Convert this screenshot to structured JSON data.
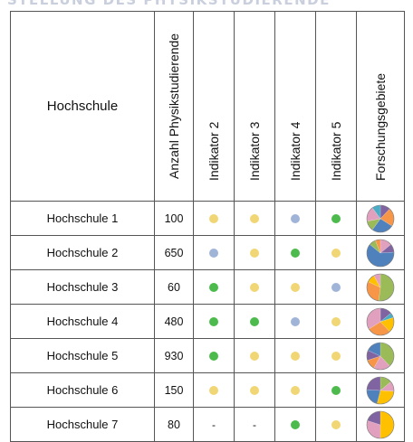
{
  "banner_text": "STELLUNG DES PHYSIKSTUDIERENDE",
  "colors": {
    "yellow": "#f0d674",
    "blue": "#a0b4d8",
    "green": "#4cba4c",
    "border": "#555555"
  },
  "headers": {
    "hochschule": "Hochschule",
    "anzahl": "Anzahl Physikstudierende",
    "indikator2": "Indikator 2",
    "indikator3": "Indikator 3",
    "indikator4": "Indikator 4",
    "indikator5": "Indikator 5",
    "forschungsgebiete": "Forschungsgebiete"
  },
  "rows": [
    {
      "name": "Hochschule 1",
      "anzahl": "100",
      "ind2": "yellow",
      "ind3": "yellow",
      "ind4": "blue",
      "ind5": "green",
      "pie": [
        [
          "#8064a2",
          0.12
        ],
        [
          "#f79646",
          0.22
        ],
        [
          "#4f81bd",
          0.26
        ],
        [
          "#9bbb59",
          0.12
        ],
        [
          "#e1a0bd",
          0.18
        ],
        [
          "#4bacc6",
          0.1
        ]
      ]
    },
    {
      "name": "Hochschule 2",
      "anzahl": "650",
      "ind2": "blue",
      "ind3": "yellow",
      "ind4": "green",
      "ind5": "yellow",
      "pie": [
        [
          "#e1a0bd",
          0.14
        ],
        [
          "#8064a2",
          0.1
        ],
        [
          "#4f81bd",
          0.62
        ],
        [
          "#9bbb59",
          0.08
        ],
        [
          "#f79646",
          0.06
        ]
      ]
    },
    {
      "name": "Hochschule 3",
      "anzahl": "60",
      "ind2": "green",
      "ind3": "yellow",
      "ind4": "yellow",
      "ind5": "blue",
      "pie": [
        [
          "#9bbb59",
          0.52
        ],
        [
          "#f79646",
          0.3
        ],
        [
          "#ffc000",
          0.1
        ],
        [
          "#e1a0bd",
          0.08
        ]
      ]
    },
    {
      "name": "Hochschule 4",
      "anzahl": "480",
      "ind2": "green",
      "ind3": "green",
      "ind4": "blue",
      "ind5": "yellow",
      "pie": [
        [
          "#8064a2",
          0.14
        ],
        [
          "#4bacc6",
          0.06
        ],
        [
          "#ffc000",
          0.18
        ],
        [
          "#f79646",
          0.28
        ],
        [
          "#e1a0bd",
          0.34
        ]
      ]
    },
    {
      "name": "Hochschule 5",
      "anzahl": "930",
      "ind2": "green",
      "ind3": "yellow",
      "ind4": "yellow",
      "ind5": "yellow",
      "pie": [
        [
          "#9bbb59",
          0.38
        ],
        [
          "#e1a0bd",
          0.2
        ],
        [
          "#f79646",
          0.12
        ],
        [
          "#8064a2",
          0.12
        ],
        [
          "#4f81bd",
          0.18
        ]
      ]
    },
    {
      "name": "Hochschule 6",
      "anzahl": "150",
      "ind2": "yellow",
      "ind3": "yellow",
      "ind4": "yellow",
      "ind5": "green",
      "pie": [
        [
          "#9bbb59",
          0.14
        ],
        [
          "#e1a0bd",
          0.12
        ],
        [
          "#ffc000",
          0.28
        ],
        [
          "#4f81bd",
          0.22
        ],
        [
          "#8064a2",
          0.24
        ]
      ]
    },
    {
      "name": "Hochschule 7",
      "anzahl": "80",
      "ind2": "-",
      "ind3": "-",
      "ind4": "green",
      "ind5": "yellow",
      "pie": [
        [
          "#ffc000",
          0.5
        ],
        [
          "#e1a0bd",
          0.3
        ],
        [
          "#8064a2",
          0.2
        ]
      ]
    }
  ]
}
